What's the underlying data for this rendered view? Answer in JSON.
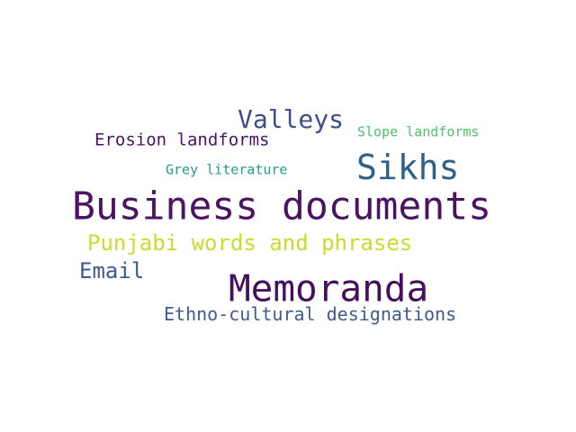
{
  "words": [
    {
      "key": "business",
      "text": "Business documents",
      "color": "#4a1463"
    },
    {
      "key": "memoranda",
      "text": "Memoranda",
      "color": "#450f5d"
    },
    {
      "key": "sikhs",
      "text": "Sikhs",
      "color": "#2f6188"
    },
    {
      "key": "valleys",
      "text": "Valleys",
      "color": "#3f4e89"
    },
    {
      "key": "punjabi",
      "text": "Punjabi words and phrases",
      "color": "#c8dc2a"
    },
    {
      "key": "email",
      "text": "Email",
      "color": "#3b5b8f"
    },
    {
      "key": "ethno",
      "text": "Ethno-cultural designations",
      "color": "#3f5c8c"
    },
    {
      "key": "erosion",
      "text": "Erosion landforms",
      "color": "#4b1462"
    },
    {
      "key": "slope",
      "text": "Slope landforms",
      "color": "#4fc06e"
    },
    {
      "key": "grey",
      "text": "Grey literature",
      "color": "#1f9e89"
    }
  ]
}
